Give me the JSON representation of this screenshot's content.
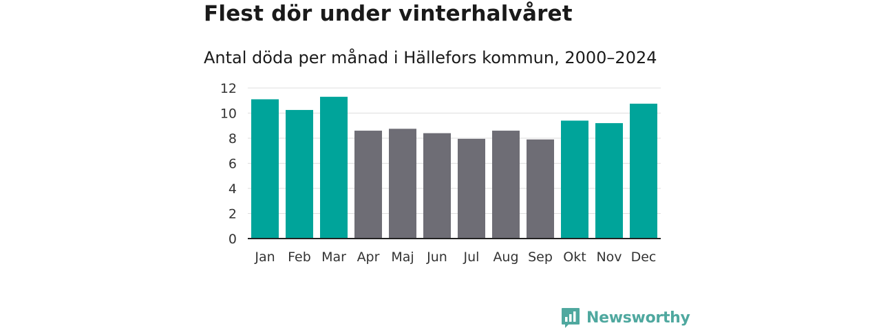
{
  "chart_data": {
    "type": "bar",
    "title": "Flest dör under vinterhalvåret",
    "subtitle": "Antal döda per månad i Hällefors kommun, 2000–2024",
    "categories": [
      "Jan",
      "Feb",
      "Mar",
      "Apr",
      "Maj",
      "Jun",
      "Jul",
      "Aug",
      "Sep",
      "Okt",
      "Nov",
      "Dec"
    ],
    "values": [
      11.1,
      10.25,
      11.3,
      8.6,
      8.75,
      8.4,
      7.95,
      8.6,
      7.9,
      9.4,
      9.2,
      10.75
    ],
    "winter": [
      true,
      true,
      true,
      false,
      false,
      false,
      false,
      false,
      false,
      true,
      true,
      true
    ],
    "colors": {
      "winter": "#00a49a",
      "summer": "#6e6d75",
      "grid": "#dddddd",
      "axis": "#222222"
    },
    "yticks": [
      0,
      2,
      4,
      6,
      8,
      10,
      12
    ],
    "ylim": [
      0,
      12
    ],
    "grid": true,
    "xlabel": "",
    "ylabel": ""
  },
  "brand": {
    "name": "Newsworthy",
    "icon": "bar-chart-speech-icon",
    "color": "#4fa89f"
  }
}
